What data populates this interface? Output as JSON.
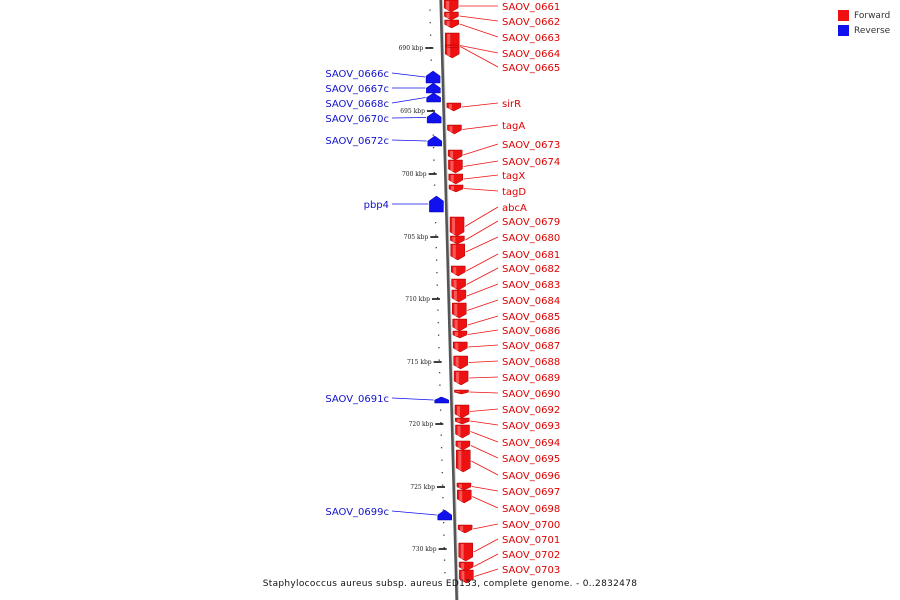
{
  "footer": "Staphylococcus aureus subsp. aureus ED133, complete genome. - 0..2832478",
  "legend": [
    {
      "label": "Forward",
      "color": "#ee1111"
    },
    {
      "label": "Reverse",
      "color": "#1111ee"
    }
  ],
  "colors": {
    "forward": "#ee1111",
    "reverse": "#1111ee",
    "backbone": "#888888"
  },
  "ticks": [
    "690 kbp",
    "695 kbp",
    "700 kbp",
    "705 kbp",
    "710 kbp",
    "715 kbp",
    "720 kbp",
    "725 kbp",
    "730 kbp"
  ],
  "forward_genes": [
    "SAOV_0661",
    "SAOV_0662",
    "SAOV_0663",
    "SAOV_0664",
    "SAOV_0665",
    "sirR",
    "tagA",
    "SAOV_0673",
    "SAOV_0674",
    "tagX",
    "tagD",
    "abcA",
    "SAOV_0679",
    "SAOV_0680",
    "SAOV_0681",
    "SAOV_0682",
    "SAOV_0683",
    "SAOV_0684",
    "SAOV_0685",
    "SAOV_0686",
    "SAOV_0687",
    "SAOV_0688",
    "SAOV_0689",
    "SAOV_0690",
    "SAOV_0692",
    "SAOV_0693",
    "SAOV_0694",
    "SAOV_0695",
    "SAOV_0696",
    "SAOV_0697",
    "SAOV_0698",
    "SAOV_0700",
    "SAOV_0701",
    "SAOV_0702",
    "SAOV_0703"
  ],
  "reverse_genes": [
    "SAOV_0666c",
    "SAOV_0667c",
    "SAOV_0668c",
    "SAOV_0670c",
    "SAOV_0672c",
    "pbp4",
    "SAOV_0691c",
    "SAOV_0699c"
  ]
}
